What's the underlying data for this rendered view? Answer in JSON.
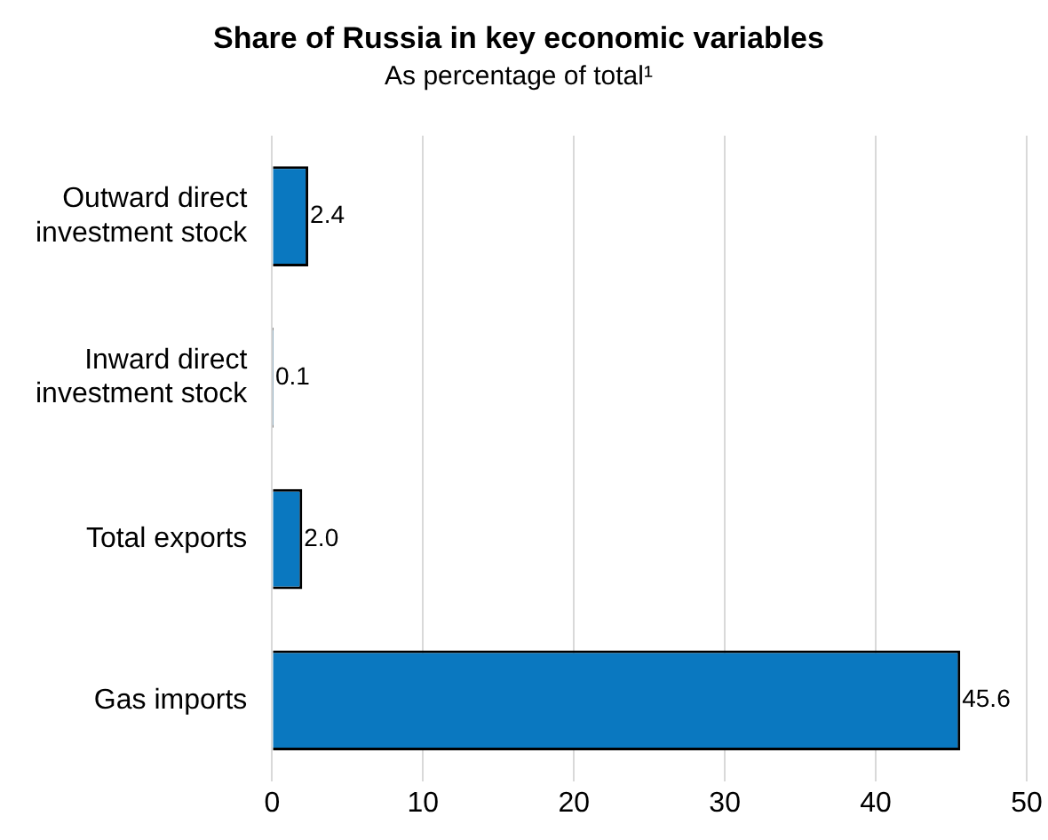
{
  "chart_data": {
    "type": "bar",
    "orientation": "horizontal",
    "title": "Share of Russia in key economic variables",
    "subtitle": "As percentage of total¹",
    "categories": [
      "Outward direct investment stock",
      "Inward direct investment stock",
      "Total exports",
      "Gas imports"
    ],
    "values": [
      2.4,
      0.1,
      2.0,
      45.6
    ],
    "value_labels": [
      "2.4",
      "0.1",
      "2.0",
      "45.6"
    ],
    "color": "#0a78c0",
    "xlim": [
      0,
      50
    ],
    "xticks": [
      0,
      10,
      20,
      30,
      40,
      50
    ],
    "grid": "x",
    "legend": false
  }
}
